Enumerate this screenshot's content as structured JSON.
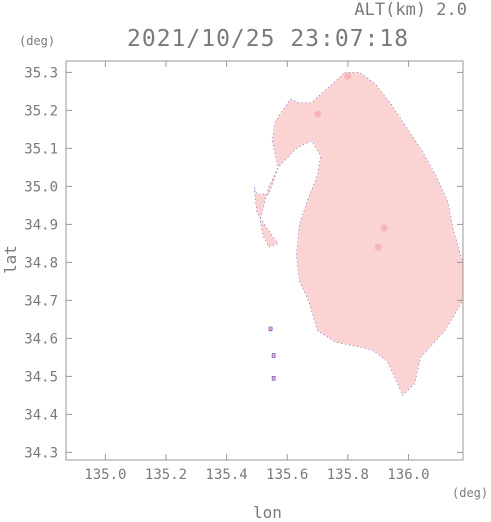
{
  "header": {
    "altitude_label": "ALT(km) 2.0",
    "timestamp": "2021/10/25 23:07:18"
  },
  "chart_data": {
    "type": "heatmap",
    "title": "2021/10/25 23:07:18",
    "subtitle": "ALT(km) 2.0",
    "xlabel": "lon",
    "ylabel": "lat",
    "x_unit": "(deg)",
    "y_unit": "(deg)",
    "xlim": [
      134.87,
      136.18
    ],
    "ylim": [
      34.28,
      35.33
    ],
    "x_ticks": [
      "135.0",
      "135.2",
      "135.4",
      "135.6",
      "135.8",
      "136.0"
    ],
    "x_tick_values": [
      135.0,
      135.2,
      135.4,
      135.6,
      135.8,
      136.0
    ],
    "y_ticks": [
      "34.3",
      "34.4",
      "34.5",
      "34.6",
      "34.7",
      "34.8",
      "34.9",
      "35.0",
      "35.1",
      "35.2",
      "35.3"
    ],
    "y_tick_values": [
      34.3,
      34.4,
      34.5,
      34.6,
      34.7,
      34.8,
      34.9,
      35.0,
      35.1,
      35.2,
      35.3
    ],
    "grid": false,
    "colors": {
      "field_fill": "#fcd3d3",
      "field_dark": "#f6aeb0",
      "edge_blue": "#4444dd",
      "axis": "#999999"
    },
    "field_outline": [
      [
        135.79,
        35.3
      ],
      [
        135.84,
        35.3
      ],
      [
        135.89,
        35.27
      ],
      [
        135.94,
        35.22
      ],
      [
        135.99,
        35.16
      ],
      [
        136.04,
        35.1
      ],
      [
        136.09,
        35.03
      ],
      [
        136.13,
        34.96
      ],
      [
        136.15,
        34.88
      ],
      [
        136.18,
        34.8
      ],
      [
        136.18,
        34.7
      ],
      [
        136.12,
        34.62
      ],
      [
        136.04,
        34.55
      ],
      [
        136.02,
        34.48
      ],
      [
        135.98,
        34.45
      ],
      [
        135.97,
        34.47
      ],
      [
        135.93,
        34.54
      ],
      [
        135.88,
        34.57
      ],
      [
        135.76,
        34.59
      ],
      [
        135.7,
        34.62
      ],
      [
        135.67,
        34.7
      ],
      [
        135.64,
        34.75
      ],
      [
        135.63,
        34.82
      ],
      [
        135.64,
        34.9
      ],
      [
        135.67,
        34.97
      ],
      [
        135.7,
        35.03
      ],
      [
        135.71,
        35.08
      ],
      [
        135.68,
        35.12
      ],
      [
        135.63,
        35.1
      ],
      [
        135.57,
        35.05
      ],
      [
        135.54,
        34.98
      ],
      [
        135.5,
        34.98
      ],
      [
        135.49,
        35.0
      ],
      [
        135.5,
        34.93
      ],
      [
        135.55,
        34.87
      ],
      [
        135.57,
        34.85
      ],
      [
        135.54,
        34.84
      ],
      [
        135.52,
        34.87
      ],
      [
        135.51,
        34.91
      ],
      [
        135.54,
        35.0
      ],
      [
        135.57,
        35.05
      ],
      [
        135.55,
        35.12
      ],
      [
        135.56,
        35.17
      ],
      [
        135.61,
        35.23
      ],
      [
        135.64,
        35.22
      ],
      [
        135.68,
        35.22
      ],
      [
        135.72,
        35.25
      ],
      [
        135.75,
        35.27
      ]
    ],
    "islands": [
      [
        [
          135.54,
          34.63
        ],
        [
          135.55,
          34.63
        ],
        [
          135.55,
          34.62
        ],
        [
          135.54,
          34.62
        ]
      ],
      [
        [
          135.55,
          34.56
        ],
        [
          135.56,
          34.56
        ],
        [
          135.56,
          34.55
        ],
        [
          135.55,
          34.55
        ]
      ],
      [
        [
          135.55,
          34.5
        ],
        [
          135.56,
          34.5
        ],
        [
          135.56,
          34.49
        ],
        [
          135.55,
          34.49
        ]
      ]
    ],
    "highlights": [
      [
        135.8,
        35.29
      ],
      [
        135.7,
        35.19
      ],
      [
        135.92,
        34.89
      ],
      [
        135.9,
        34.84
      ]
    ]
  }
}
